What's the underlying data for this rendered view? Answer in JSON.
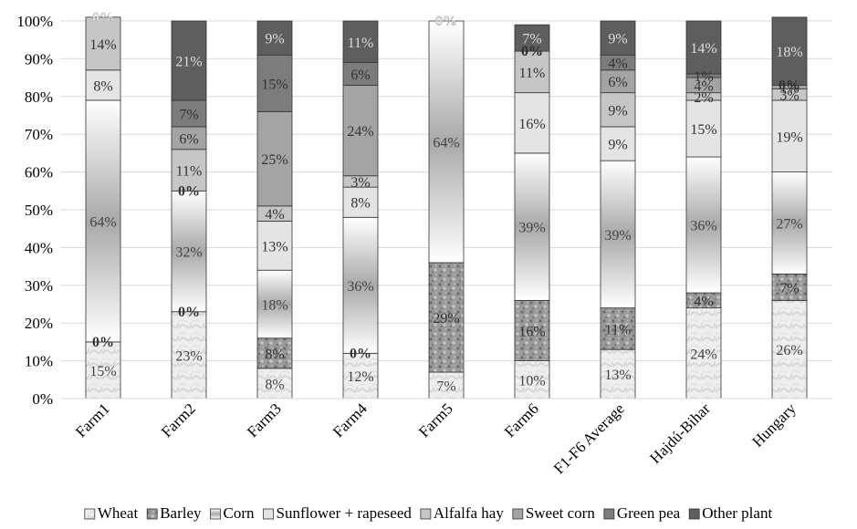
{
  "chart_data": {
    "type": "bar",
    "stacked": true,
    "normalized": true,
    "title": "",
    "xlabel": "",
    "ylabel": "",
    "ylim": [
      0,
      100
    ],
    "yticks": [
      "0%",
      "10%",
      "20%",
      "30%",
      "40%",
      "50%",
      "60%",
      "70%",
      "80%",
      "90%",
      "100%"
    ],
    "grid": true,
    "legend_position": "bottom",
    "categories": [
      "Farm1",
      "Farm2",
      "Farm3",
      "Farm4",
      "Farm5",
      "Farm6",
      "F1-F6 Average",
      "Hajdú-Bihar",
      "Hungary"
    ],
    "series": [
      {
        "name": "Wheat",
        "values": [
          15,
          23,
          8,
          12,
          7,
          10,
          13,
          24,
          26
        ],
        "labels": [
          "15%",
          "23%",
          "8%",
          "12%",
          "7%",
          "10%",
          "13%",
          "24%",
          "26%"
        ],
        "color": "#ececec",
        "label_color": "#444444"
      },
      {
        "name": "Barley",
        "values": [
          0,
          0,
          8,
          0,
          29,
          16,
          11,
          4,
          7
        ],
        "labels": [
          "0%",
          "0%",
          "8%",
          "0%",
          "29%",
          "16%",
          "11%",
          "4%",
          "7%"
        ],
        "color": "#8a8a8a",
        "label_color": "#333333"
      },
      {
        "name": "Corn",
        "values": [
          64,
          32,
          18,
          36,
          64,
          39,
          39,
          36,
          27
        ],
        "labels": [
          "64%",
          "32%",
          "18%",
          "36%",
          "64%",
          "39%",
          "39%",
          "36%",
          "27%"
        ],
        "color": "#d2d2d2",
        "label_color": "#444444"
      },
      {
        "name": "Sunflower + rapeseed",
        "values": [
          8,
          0,
          13,
          8,
          0,
          16,
          9,
          15,
          19
        ],
        "labels": [
          "8%",
          "0%",
          "13%",
          "8%",
          "0%",
          "16%",
          "9%",
          "15%",
          "19%"
        ],
        "color": "#e4e4e4",
        "label_color": "#333333"
      },
      {
        "name": "Alfalfa hay",
        "values": [
          14,
          11,
          4,
          3,
          0,
          11,
          9,
          2,
          3
        ],
        "labels": [
          "14%",
          "11%",
          "4%",
          "3%",
          "0%",
          "11%",
          "9%",
          "2%",
          "3%"
        ],
        "color": "#c6c6c6",
        "label_color": "#333333"
      },
      {
        "name": "Sweet corn",
        "values": [
          0,
          6,
          25,
          24,
          0,
          0,
          6,
          4,
          1
        ],
        "labels": [
          "0%",
          "6%",
          "25%",
          "24%",
          "0%",
          "0%",
          "6%",
          "4%",
          "1%"
        ],
        "color": "#a4a4a4",
        "label_color": "#333333"
      },
      {
        "name": "Green pea",
        "values": [
          0,
          7,
          15,
          6,
          0,
          0,
          4,
          1,
          0
        ],
        "labels": [
          "0%",
          "7%",
          "15%",
          "6%",
          "0%",
          "0%",
          "4%",
          "1%",
          "0%"
        ],
        "color": "#7c7c7c",
        "label_color": "#333333"
      },
      {
        "name": "Other plant",
        "values": [
          0,
          21,
          9,
          11,
          0,
          7,
          9,
          14,
          18
        ],
        "labels": [
          "0%",
          "21%",
          "9%",
          "11%",
          "0%",
          "7%",
          "9%",
          "14%",
          "18%"
        ],
        "color": "#5e5e5e",
        "label_color": "#dddddd"
      }
    ]
  }
}
